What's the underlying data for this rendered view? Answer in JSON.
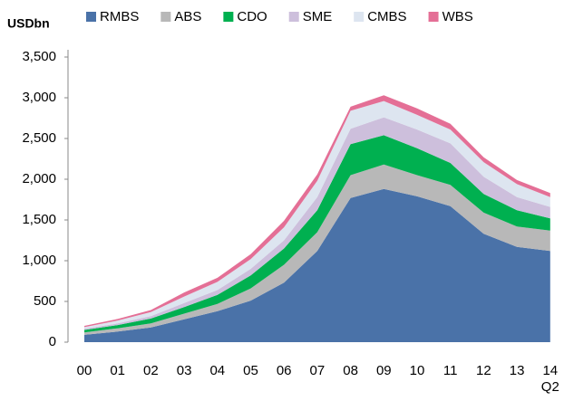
{
  "chart_data": {
    "type": "stacked_area",
    "y_label": "USDbn",
    "categories": [
      "00",
      "01",
      "02",
      "03",
      "04",
      "05",
      "06",
      "07",
      "08",
      "09",
      "10",
      "11",
      "12",
      "13",
      "14 Q2"
    ],
    "series": [
      {
        "name": "RMBS",
        "color": "#4a72a8",
        "values": [
          90,
          130,
          180,
          280,
          380,
          510,
          730,
          1120,
          1770,
          1880,
          1790,
          1670,
          1330,
          1170,
          1120
        ]
      },
      {
        "name": "ABS",
        "color": "#b8b8b8",
        "values": [
          30,
          40,
          50,
          70,
          90,
          150,
          220,
          230,
          280,
          300,
          260,
          260,
          260,
          250,
          250
        ]
      },
      {
        "name": "CDO",
        "color": "#00b050",
        "values": [
          30,
          40,
          60,
          80,
          110,
          160,
          200,
          270,
          380,
          360,
          330,
          270,
          230,
          200,
          150
        ]
      },
      {
        "name": "SME",
        "color": "#cdbfdc",
        "values": [
          15,
          20,
          30,
          50,
          60,
          80,
          100,
          160,
          190,
          220,
          230,
          240,
          210,
          160,
          140
        ]
      },
      {
        "name": "CMBS",
        "color": "#dde5f0",
        "values": [
          20,
          35,
          50,
          80,
          100,
          120,
          160,
          200,
          220,
          200,
          180,
          170,
          180,
          160,
          120
        ]
      },
      {
        "name": "WBS",
        "color": "#e46f96",
        "values": [
          15,
          20,
          25,
          50,
          50,
          60,
          80,
          80,
          50,
          70,
          80,
          70,
          60,
          50,
          50
        ]
      }
    ],
    "ylim": [
      0,
      3500
    ],
    "yticks": [
      0,
      {
        "value": 500,
        "label": "500"
      },
      {
        "value": 1000,
        "label": "1,000"
      },
      {
        "value": 1500,
        "label": "1,500"
      },
      {
        "value": 2000,
        "label": "2,000"
      },
      {
        "value": 2500,
        "label": "2,500"
      },
      {
        "value": 3000,
        "label": "3,000"
      },
      {
        "value": 3500,
        "label": "3,500"
      }
    ],
    "legend": "top"
  }
}
